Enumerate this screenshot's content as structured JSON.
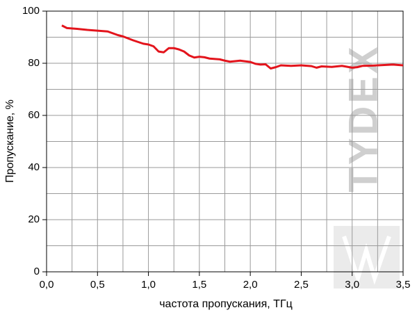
{
  "chart_data": {
    "type": "line",
    "x_label": "частота пропускания, ТГц",
    "y_label": "Пропускание, %",
    "watermark": "TYDEX",
    "x": [
      0.15,
      0.2,
      0.3,
      0.4,
      0.5,
      0.6,
      0.7,
      0.75,
      0.85,
      0.95,
      1.0,
      1.05,
      1.1,
      1.15,
      1.2,
      1.25,
      1.3,
      1.35,
      1.4,
      1.45,
      1.5,
      1.55,
      1.6,
      1.7,
      1.75,
      1.8,
      1.9,
      2.0,
      2.05,
      2.1,
      2.15,
      2.2,
      2.25,
      2.3,
      2.4,
      2.5,
      2.6,
      2.65,
      2.7,
      2.8,
      2.9,
      3.0,
      3.05,
      3.1,
      3.2,
      3.3,
      3.4,
      3.5
    ],
    "series": [
      {
        "name": "Пропускание",
        "color": "#e3141c",
        "values": [
          94.5,
          93.5,
          93.2,
          92.8,
          92.5,
          92.2,
          90.8,
          90.3,
          88.8,
          87.5,
          87.2,
          86.5,
          84.5,
          84.2,
          85.8,
          85.8,
          85.3,
          84.5,
          83.0,
          82.2,
          82.5,
          82.3,
          81.8,
          81.5,
          81.0,
          80.6,
          81.0,
          80.5,
          79.8,
          79.5,
          79.6,
          78.0,
          78.5,
          79.2,
          79.0,
          79.2,
          78.9,
          78.3,
          78.8,
          78.6,
          79.0,
          78.3,
          78.5,
          79.0,
          79.1,
          79.3,
          79.5,
          79.2
        ]
      }
    ],
    "xlim": [
      0,
      3.5
    ],
    "ylim": [
      0,
      100
    ],
    "xticks": [
      {
        "value": 0,
        "label": "0,0"
      },
      {
        "value": 0.5,
        "label": "0,5"
      },
      {
        "value": 1,
        "label": "1,0"
      },
      {
        "value": 1.5,
        "label": "1,5"
      },
      {
        "value": 2,
        "label": "2,0"
      },
      {
        "value": 2.5,
        "label": "2,5"
      },
      {
        "value": 3,
        "label": "3,0"
      },
      {
        "value": 3.5,
        "label": "3,5"
      }
    ],
    "xminorticks": [
      0.25,
      0.75,
      1.25,
      1.75,
      2.25,
      2.75,
      3.25
    ],
    "yticks": [
      0,
      20,
      40,
      60,
      80,
      100
    ],
    "yminorticks": [
      10,
      30,
      50,
      70,
      90
    ],
    "grid": true
  }
}
